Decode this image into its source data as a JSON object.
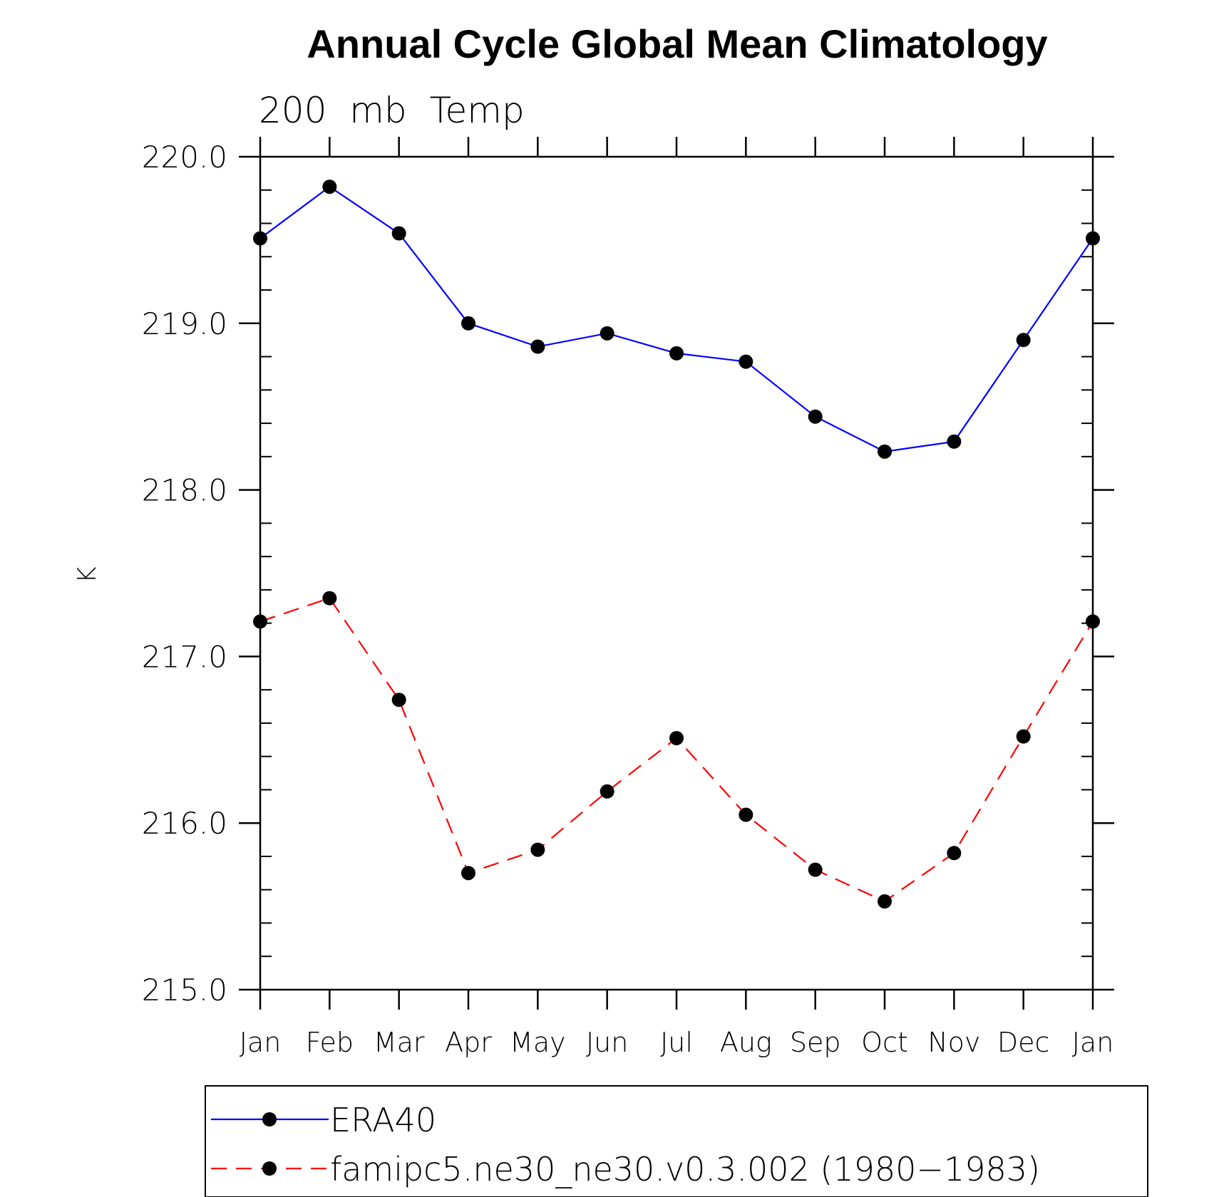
{
  "chart_data": {
    "type": "line",
    "title": "Annual Cycle Global Mean Climatology",
    "subtitle": "200  mb  Temp",
    "ylabel": "K",
    "xlabel": "",
    "categories": [
      "Jan",
      "Feb",
      "Mar",
      "Apr",
      "May",
      "Jun",
      "Jul",
      "Aug",
      "Sep",
      "Oct",
      "Nov",
      "Dec",
      "Jan"
    ],
    "ylim": [
      215.0,
      220.0
    ],
    "yticks": [
      "215.0",
      "216.0",
      "217.0",
      "218.0",
      "219.0",
      "220.0"
    ],
    "grid": false,
    "legend_position": "bottom",
    "series": [
      {
        "name": "ERA40",
        "color": "#0000ff",
        "line_style": "solid",
        "marker": "filled-circle",
        "values": [
          219.51,
          219.82,
          219.54,
          219.0,
          218.86,
          218.94,
          218.82,
          218.77,
          218.44,
          218.23,
          218.29,
          218.9,
          219.51
        ]
      },
      {
        "name": "famipc5.ne30_ne30.v0.3.002 (1980−1983)",
        "color": "#ff0000",
        "line_style": "dashed",
        "marker": "filled-circle",
        "values": [
          217.21,
          217.35,
          216.74,
          215.7,
          215.84,
          216.19,
          216.51,
          216.05,
          215.72,
          215.53,
          215.82,
          216.52,
          217.21
        ]
      }
    ]
  }
}
